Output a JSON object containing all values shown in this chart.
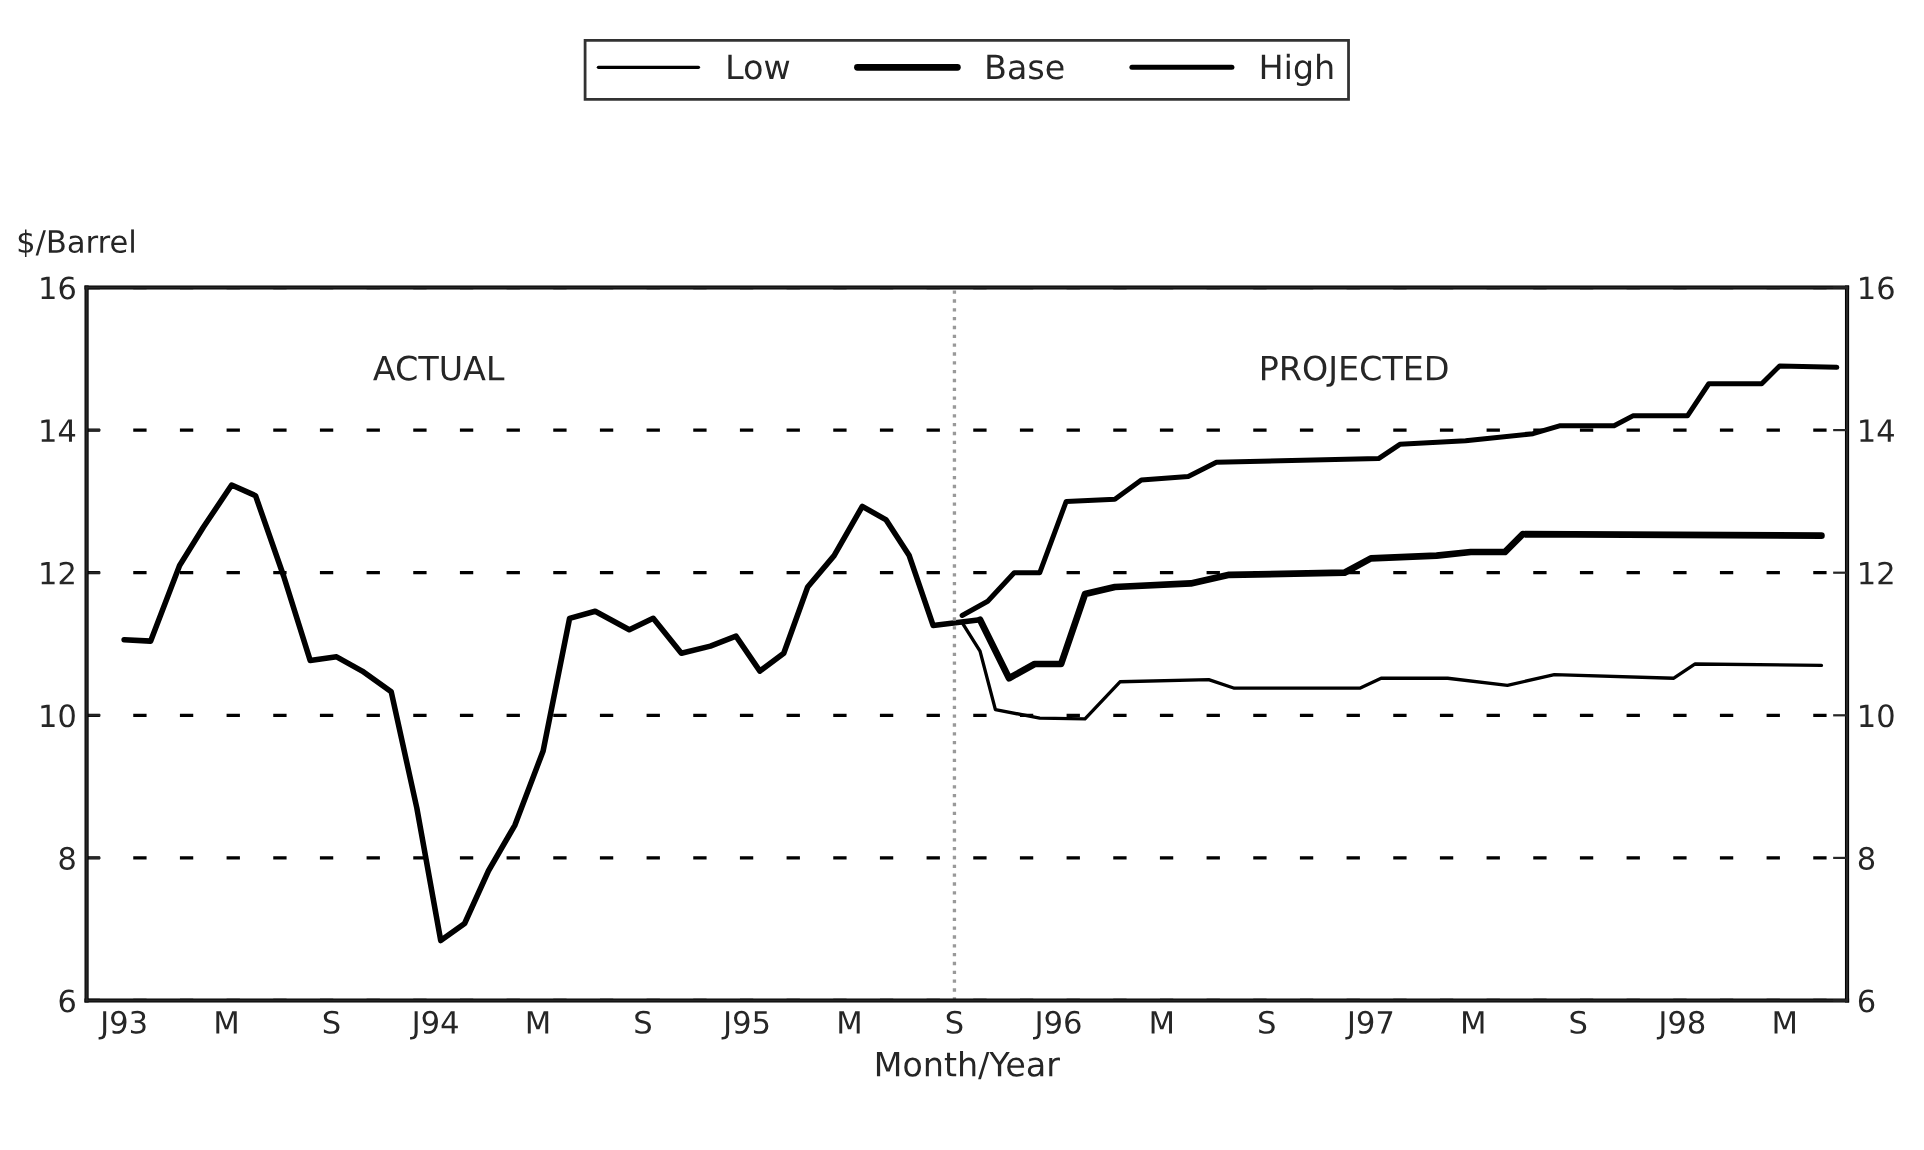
{
  "chart_data": {
    "type": "line",
    "xlabel": "Month/Year",
    "ylabel": "$/Barrel",
    "annotations": [
      "ACTUAL",
      "PROJECTED"
    ],
    "xlim": [
      "1992-11-18",
      "1998-07-13"
    ],
    "ylim": [
      6,
      16
    ],
    "xticks": [
      {
        "value": "1993-01",
        "label": "J93"
      },
      {
        "value": "1993-05",
        "label": "M"
      },
      {
        "value": "1993-09",
        "label": "S"
      },
      {
        "value": "1994-01",
        "label": "J94"
      },
      {
        "value": "1994-05",
        "label": "M"
      },
      {
        "value": "1994-09",
        "label": "S"
      },
      {
        "value": "1995-01",
        "label": "J95"
      },
      {
        "value": "1995-05",
        "label": "M"
      },
      {
        "value": "1995-09",
        "label": "S"
      },
      {
        "value": "1996-01",
        "label": "J96"
      },
      {
        "value": "1996-05",
        "label": "M"
      },
      {
        "value": "1996-09",
        "label": "S"
      },
      {
        "value": "1997-01",
        "label": "J97"
      },
      {
        "value": "1997-05",
        "label": "M"
      },
      {
        "value": "1997-09",
        "label": "S"
      },
      {
        "value": "1998-01",
        "label": "J98"
      },
      {
        "value": "1998-05",
        "label": "M"
      }
    ],
    "yticks": [
      6,
      8,
      10,
      12,
      14,
      16
    ],
    "y2lim": [
      6,
      16
    ],
    "y2ticks": [
      6,
      8,
      10,
      12,
      14,
      16
    ],
    "grid": "y",
    "legend": "top",
    "line_style": "solid",
    "ref_lines": [
      {
        "axis": "x",
        "value": "1995-09-01",
        "color": "#999999",
        "line_style": "dotted"
      }
    ],
    "series": [
      {
        "color": "#000000",
        "x": [
          "1993-01-01",
          "1993-02-01",
          "1993-03-07",
          "1993-04-04",
          "1993-05-07",
          "1993-06-04",
          "1993-07-07",
          "1993-08-07",
          "1993-09-07",
          "1993-10-07",
          "1993-11-10",
          "1993-12-10",
          "1994-01-07",
          "1994-02-04",
          "1994-03-04",
          "1994-04-04",
          "1994-05-07",
          "1994-06-07",
          "1994-07-07",
          "1994-08-16",
          "1994-09-13",
          "1994-10-16",
          "1994-11-19",
          "1994-12-19",
          "1995-01-16",
          "1995-02-13",
          "1995-03-13",
          "1995-04-13",
          "1995-05-16",
          "1995-06-13",
          "1995-07-10",
          "1995-08-07",
          "1995-10-01"
        ],
        "values": [
          11.06,
          11.04,
          12.1,
          12.64,
          13.23,
          13.08,
          11.95,
          10.77,
          10.82,
          10.62,
          10.33,
          8.7,
          6.84,
          7.08,
          7.82,
          8.46,
          9.5,
          11.36,
          11.46,
          11.2,
          11.36,
          10.87,
          10.97,
          11.11,
          10.62,
          10.87,
          11.8,
          12.24,
          12.93,
          12.74,
          12.24,
          11.26,
          11.34
        ]
      },
      {
        "name": "Low",
        "color": "#000000",
        "x": [
          "1995-09-10",
          "1995-10-01",
          "1995-10-19",
          "1995-12-10",
          "1996-02-01",
          "1996-03-13",
          "1996-06-25",
          "1996-07-25",
          "1996-12-19",
          "1997-01-13",
          "1997-04-01",
          "1997-06-10",
          "1997-08-04",
          "1997-12-22",
          "1998-01-16",
          "1998-06-13"
        ],
        "values": [
          11.3,
          10.9,
          10.08,
          9.96,
          9.95,
          10.47,
          10.5,
          10.38,
          10.38,
          10.52,
          10.52,
          10.42,
          10.57,
          10.52,
          10.72,
          10.7
        ]
      },
      {
        "name": "Base",
        "color": "#000000",
        "x": [
          "1995-10-01",
          "1995-11-04",
          "1995-12-04",
          "1996-01-04",
          "1996-02-01",
          "1996-03-07",
          "1996-06-04",
          "1996-07-19",
          "1996-12-01",
          "1997-01-01",
          "1997-03-19",
          "1997-04-28",
          "1997-06-07",
          "1997-06-28",
          "1998-06-13"
        ],
        "values": [
          11.34,
          10.52,
          10.72,
          10.72,
          11.7,
          11.8,
          11.85,
          11.97,
          12.0,
          12.2,
          12.24,
          12.29,
          12.29,
          12.54,
          12.52
        ]
      },
      {
        "name": "High",
        "color": "#000000",
        "x": [
          "1995-09-10",
          "1995-10-10",
          "1995-11-10",
          "1995-12-10",
          "1996-01-10",
          "1996-03-07",
          "1996-04-07",
          "1996-06-01",
          "1996-07-04",
          "1997-01-10",
          "1997-02-04",
          "1997-04-22",
          "1997-07-10",
          "1997-08-10",
          "1997-10-13",
          "1997-11-04",
          "1998-01-07",
          "1998-02-01",
          "1998-04-04",
          "1998-04-25",
          "1998-07-01"
        ],
        "values": [
          11.4,
          11.6,
          12.0,
          12.0,
          13.0,
          13.03,
          13.3,
          13.35,
          13.55,
          13.6,
          13.8,
          13.85,
          13.95,
          14.06,
          14.06,
          14.2,
          14.2,
          14.65,
          14.65,
          14.9,
          14.88
        ]
      }
    ]
  }
}
